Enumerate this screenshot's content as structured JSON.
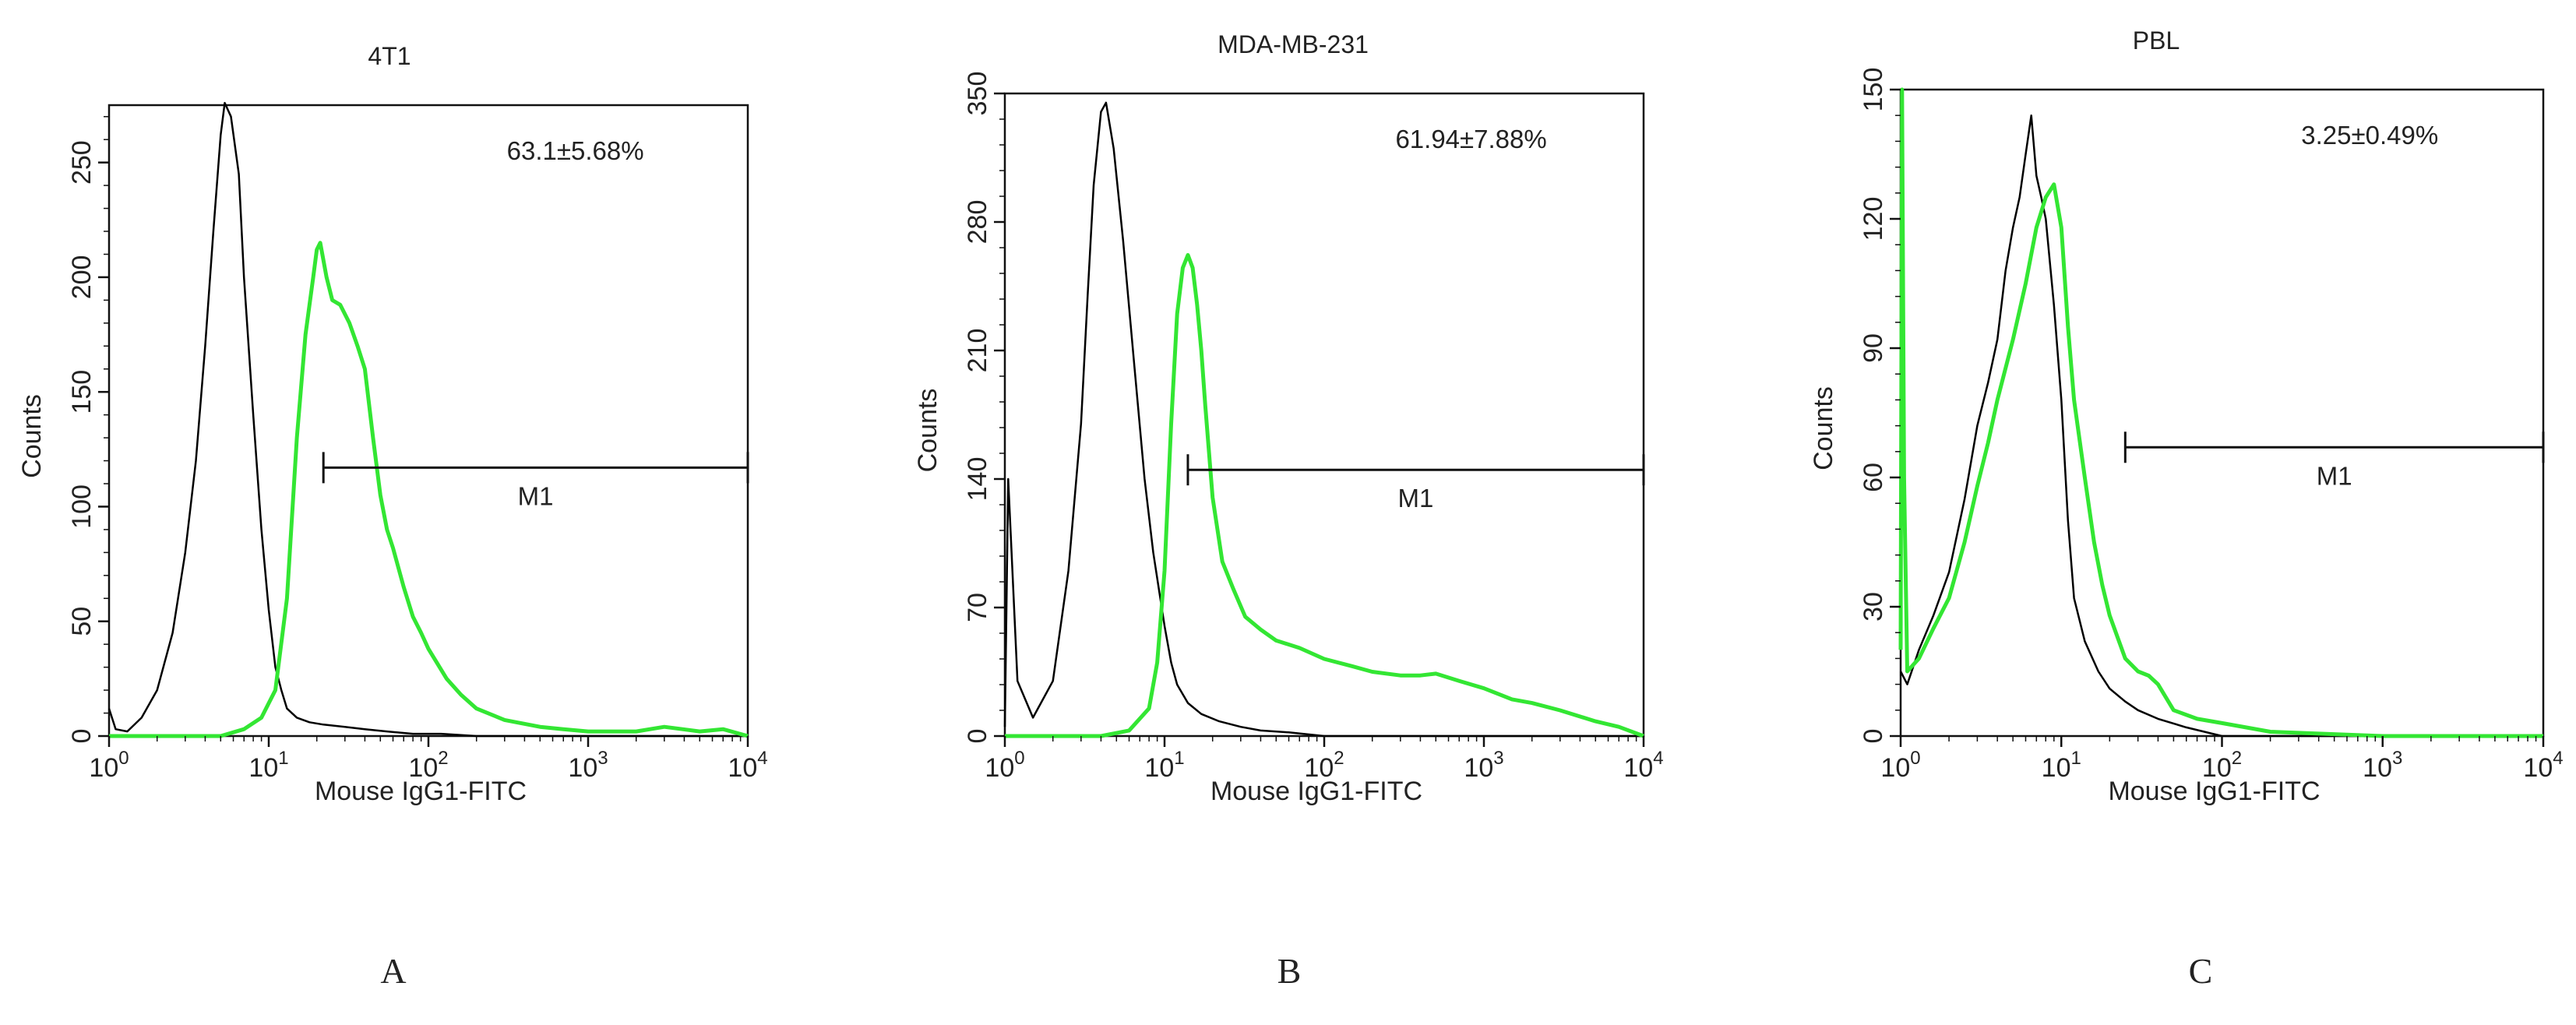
{
  "chart_data": [
    {
      "type": "area",
      "panel_label": "A",
      "title": "4T1",
      "xlabel": "Mouse IgG1-FITC",
      "ylabel": "Counts",
      "x_scale": "log",
      "xlim": [
        1,
        10000
      ],
      "ylim": [
        0,
        275
      ],
      "x_ticks": [
        {
          "base": "10",
          "exp": "0"
        },
        {
          "base": "10",
          "exp": "1"
        },
        {
          "base": "10",
          "exp": "2"
        },
        {
          "base": "10",
          "exp": "3"
        },
        {
          "base": "10",
          "exp": "4"
        }
      ],
      "y_ticks": [
        "0",
        "50",
        "100",
        "150",
        "200",
        "250"
      ],
      "y_tick_values": [
        0,
        50,
        100,
        150,
        200,
        250
      ],
      "annotation": "63.1±5.68%",
      "marker": {
        "label": "M1",
        "x_start": 22,
        "x_end": 10000,
        "y": 117
      },
      "series": [
        {
          "color": "#000000",
          "x": [
            1,
            1.1,
            1.3,
            1.6,
            2,
            2.5,
            3,
            3.5,
            4,
            4.5,
            5,
            5.3,
            5.8,
            6.5,
            7,
            8,
            9,
            10,
            11,
            12,
            13,
            15,
            18,
            22,
            30,
            40,
            55,
            80,
            120,
            200,
            10000
          ],
          "y": [
            12,
            3,
            2,
            8,
            20,
            45,
            80,
            120,
            170,
            220,
            262,
            276,
            270,
            245,
            200,
            140,
            90,
            55,
            30,
            20,
            12,
            8,
            6,
            5,
            4,
            3,
            2,
            1,
            1,
            0,
            0
          ]
        },
        {
          "color": "#33e633",
          "x": [
            1,
            5,
            7,
            9,
            11,
            13,
            15,
            17,
            19,
            20,
            21,
            23,
            25,
            28,
            32,
            36,
            40,
            45,
            50,
            55,
            60,
            70,
            80,
            90,
            100,
            130,
            160,
            200,
            300,
            500,
            700,
            1000,
            2000,
            3000,
            5000,
            7000,
            10000
          ],
          "y": [
            0,
            0,
            3,
            8,
            20,
            60,
            130,
            175,
            200,
            212,
            215,
            200,
            190,
            188,
            180,
            170,
            160,
            130,
            105,
            90,
            82,
            65,
            52,
            45,
            38,
            25,
            18,
            12,
            7,
            4,
            3,
            2,
            2,
            4,
            2,
            3,
            0
          ]
        }
      ]
    },
    {
      "type": "area",
      "panel_label": "B",
      "title": "MDA-MB-231",
      "xlabel": "Mouse IgG1-FITC",
      "ylabel": "Counts",
      "x_scale": "log",
      "xlim": [
        1,
        10000
      ],
      "ylim": [
        0,
        350
      ],
      "x_ticks": [
        {
          "base": "10",
          "exp": "0"
        },
        {
          "base": "10",
          "exp": "1"
        },
        {
          "base": "10",
          "exp": "2"
        },
        {
          "base": "10",
          "exp": "3"
        },
        {
          "base": "10",
          "exp": "4"
        }
      ],
      "y_ticks": [
        "0",
        "70",
        "140",
        "210",
        "280",
        "350"
      ],
      "y_tick_values": [
        0,
        70,
        140,
        210,
        280,
        350
      ],
      "annotation": "61.94±7.88%",
      "marker": {
        "label": "M1",
        "x_start": 14,
        "x_end": 10000,
        "y": 145
      },
      "series": [
        {
          "color": "#000000",
          "x": [
            1,
            1.05,
            1.2,
            1.5,
            2,
            2.5,
            3,
            3.3,
            3.6,
            4,
            4.3,
            4.8,
            5.5,
            6.5,
            7.5,
            8.5,
            10,
            11,
            12,
            14,
            17,
            22,
            30,
            40,
            60,
            100,
            10000
          ],
          "y": [
            5,
            140,
            30,
            10,
            30,
            90,
            170,
            240,
            300,
            340,
            345,
            320,
            270,
            200,
            140,
            100,
            60,
            40,
            28,
            18,
            12,
            8,
            5,
            3,
            2,
            0,
            0
          ]
        },
        {
          "color": "#33e633",
          "x": [
            1,
            4,
            6,
            8,
            9,
            10,
            11,
            12,
            13,
            14,
            15,
            16,
            17,
            18,
            20,
            23,
            27,
            32,
            40,
            50,
            70,
            100,
            150,
            200,
            300,
            400,
            500,
            700,
            1000,
            1500,
            2000,
            3000,
            5000,
            7000,
            10000
          ],
          "y": [
            0,
            0,
            3,
            15,
            40,
            90,
            170,
            230,
            255,
            262,
            255,
            235,
            210,
            180,
            130,
            95,
            80,
            65,
            58,
            52,
            48,
            42,
            38,
            35,
            33,
            33,
            34,
            30,
            26,
            20,
            18,
            14,
            8,
            5,
            0
          ]
        }
      ]
    },
    {
      "type": "area",
      "panel_label": "C",
      "title": "PBL",
      "xlabel": "Mouse IgG1-FITC",
      "ylabel": "Counts",
      "x_scale": "log",
      "xlim": [
        1,
        10000
      ],
      "ylim": [
        0,
        150
      ],
      "x_ticks": [
        {
          "base": "10",
          "exp": "0"
        },
        {
          "base": "10",
          "exp": "1"
        },
        {
          "base": "10",
          "exp": "2"
        },
        {
          "base": "10",
          "exp": "3"
        },
        {
          "base": "10",
          "exp": "4"
        }
      ],
      "y_ticks": [
        "0",
        "30",
        "60",
        "90",
        "120",
        "150"
      ],
      "y_tick_values": [
        0,
        30,
        60,
        90,
        120,
        150
      ],
      "annotation": "3.25±0.49%",
      "marker": {
        "label": "M1",
        "x_start": 25,
        "x_end": 10000,
        "y": 67
      },
      "series": [
        {
          "color": "#000000",
          "x": [
            1,
            1.1,
            1.3,
            1.6,
            2,
            2.5,
            3,
            3.5,
            4,
            4.5,
            5,
            5.5,
            6,
            6.5,
            7,
            7.5,
            8,
            9,
            10,
            11,
            12,
            14,
            17,
            20,
            25,
            30,
            40,
            60,
            100,
            10000
          ],
          "y": [
            15,
            12,
            20,
            28,
            38,
            55,
            72,
            82,
            92,
            108,
            118,
            125,
            135,
            144,
            130,
            125,
            120,
            100,
            78,
            50,
            32,
            22,
            15,
            11,
            8,
            6,
            4,
            2,
            0,
            0
          ]
        },
        {
          "color": "#33e633",
          "x": [
            1,
            1.02,
            1.05,
            1.1,
            1.3,
            1.6,
            2,
            2.5,
            3,
            3.5,
            4,
            5,
            6,
            7,
            8,
            9,
            10,
            11,
            12,
            14,
            16,
            18,
            20,
            25,
            30,
            35,
            40,
            50,
            70,
            100,
            200,
            1000,
            10000
          ],
          "y": [
            20,
            150,
            60,
            15,
            18,
            25,
            32,
            45,
            58,
            68,
            78,
            92,
            105,
            118,
            125,
            128,
            118,
            95,
            78,
            60,
            45,
            35,
            28,
            18,
            15,
            14,
            12,
            6,
            4,
            3,
            1,
            0,
            0
          ]
        }
      ]
    }
  ]
}
